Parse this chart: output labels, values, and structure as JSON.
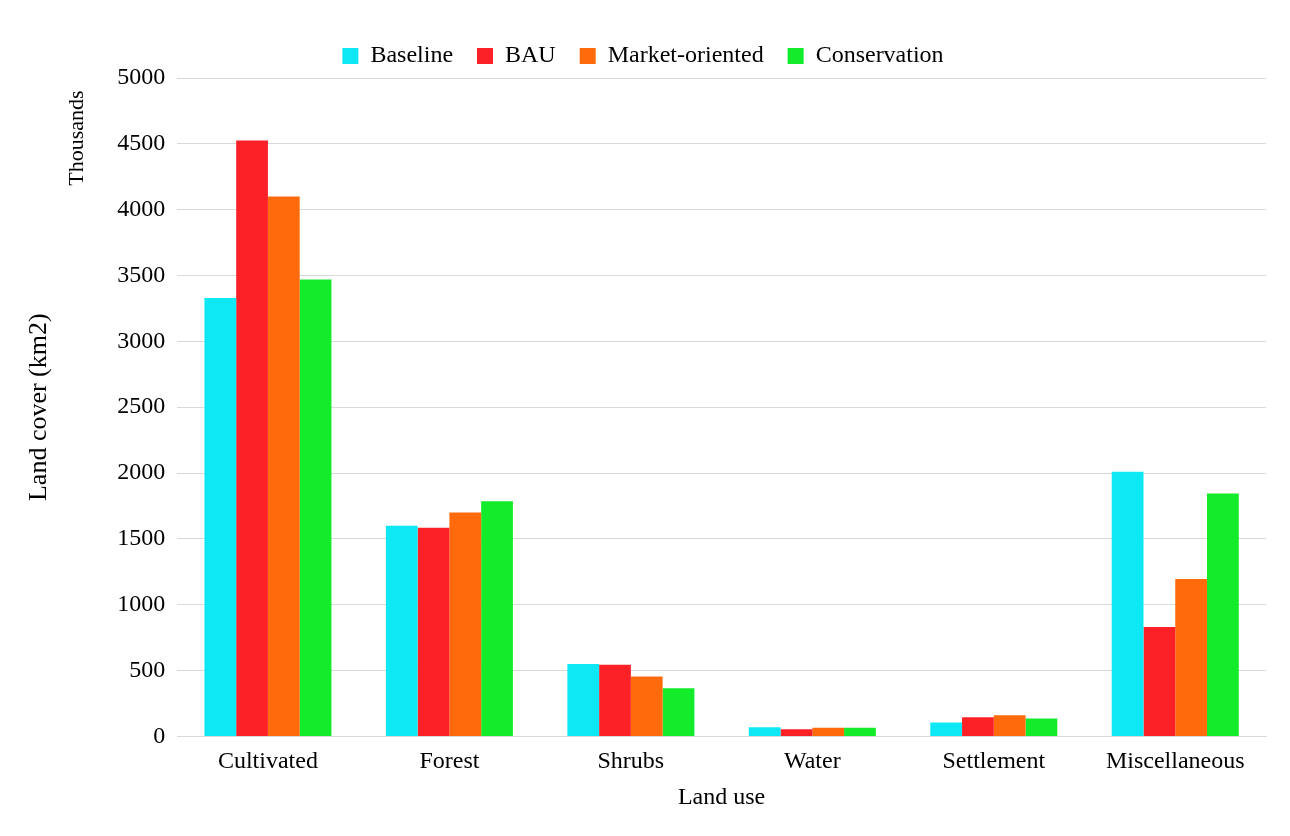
{
  "chart_data": {
    "type": "bar",
    "xlabel": "Land use",
    "ylabel": "Land cover (km2)",
    "annotations": [
      "Thousands"
    ],
    "categories": [
      "Cultivated",
      "Forest",
      "Shrubs",
      "Water",
      "Settlement",
      "Miscellaneous"
    ],
    "series": [
      {
        "name": "Baseline",
        "color": "#0ee8f5",
        "values": [
          3330,
          1600,
          550,
          70,
          105,
          2010
        ]
      },
      {
        "name": "BAU",
        "color": "#fc2027",
        "values": [
          4525,
          1585,
          545,
          55,
          145,
          830
        ]
      },
      {
        "name": "Market-oriented",
        "color": "#ff6a0a",
        "values": [
          4100,
          1700,
          455,
          65,
          160,
          1195
        ]
      },
      {
        "name": "Conservation",
        "color": "#12ec2a",
        "values": [
          3470,
          1785,
          365,
          65,
          135,
          1845
        ]
      }
    ],
    "ylim": [
      0,
      5000
    ],
    "yticks": [
      0,
      500,
      1000,
      1500,
      2000,
      2500,
      3000,
      3500,
      4000,
      4500,
      5000
    ],
    "grid": "y",
    "legend": "top"
  }
}
